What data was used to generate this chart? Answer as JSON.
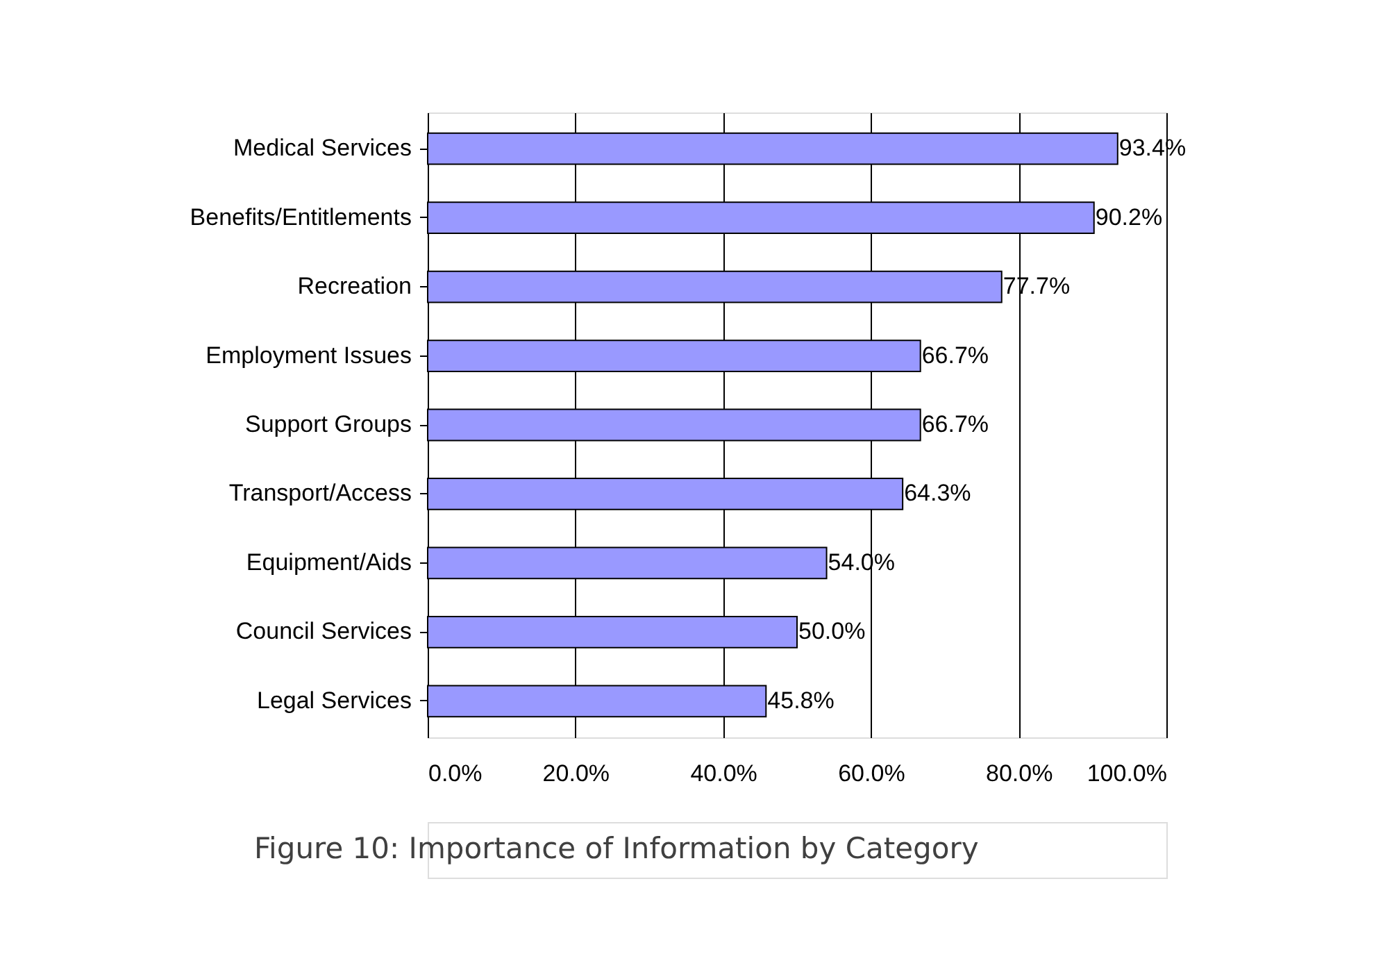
{
  "chart_data": {
    "type": "bar",
    "orientation": "horizontal",
    "categories": [
      "Medical Services",
      "Benefits/Entitlements",
      "Recreation",
      "Employment Issues",
      "Support Groups",
      "Transport/Access",
      "Equipment/Aids",
      "Council Services",
      "Legal Services"
    ],
    "values": [
      93.4,
      90.2,
      77.7,
      66.7,
      66.7,
      64.3,
      54.0,
      50.0,
      45.8
    ],
    "value_labels": [
      "93.4%",
      "90.2%",
      "77.7%",
      "66.7%",
      "66.7%",
      "64.3%",
      "54.0%",
      "50.0%",
      "45.8%"
    ],
    "color": "#9999ff",
    "xlim": [
      0,
      100
    ],
    "xticks": [
      {
        "value": 0,
        "label": "0.0%"
      },
      {
        "value": 20,
        "label": "20.0%"
      },
      {
        "value": 40,
        "label": "40.0%"
      },
      {
        "value": 60,
        "label": "60.0%"
      },
      {
        "value": 80,
        "label": "80.0%"
      },
      {
        "value": 100,
        "label": "100.0%"
      }
    ],
    "grid": "x",
    "legend": false,
    "annotations": [
      "Figure 10: Importance of Information by Category"
    ]
  }
}
